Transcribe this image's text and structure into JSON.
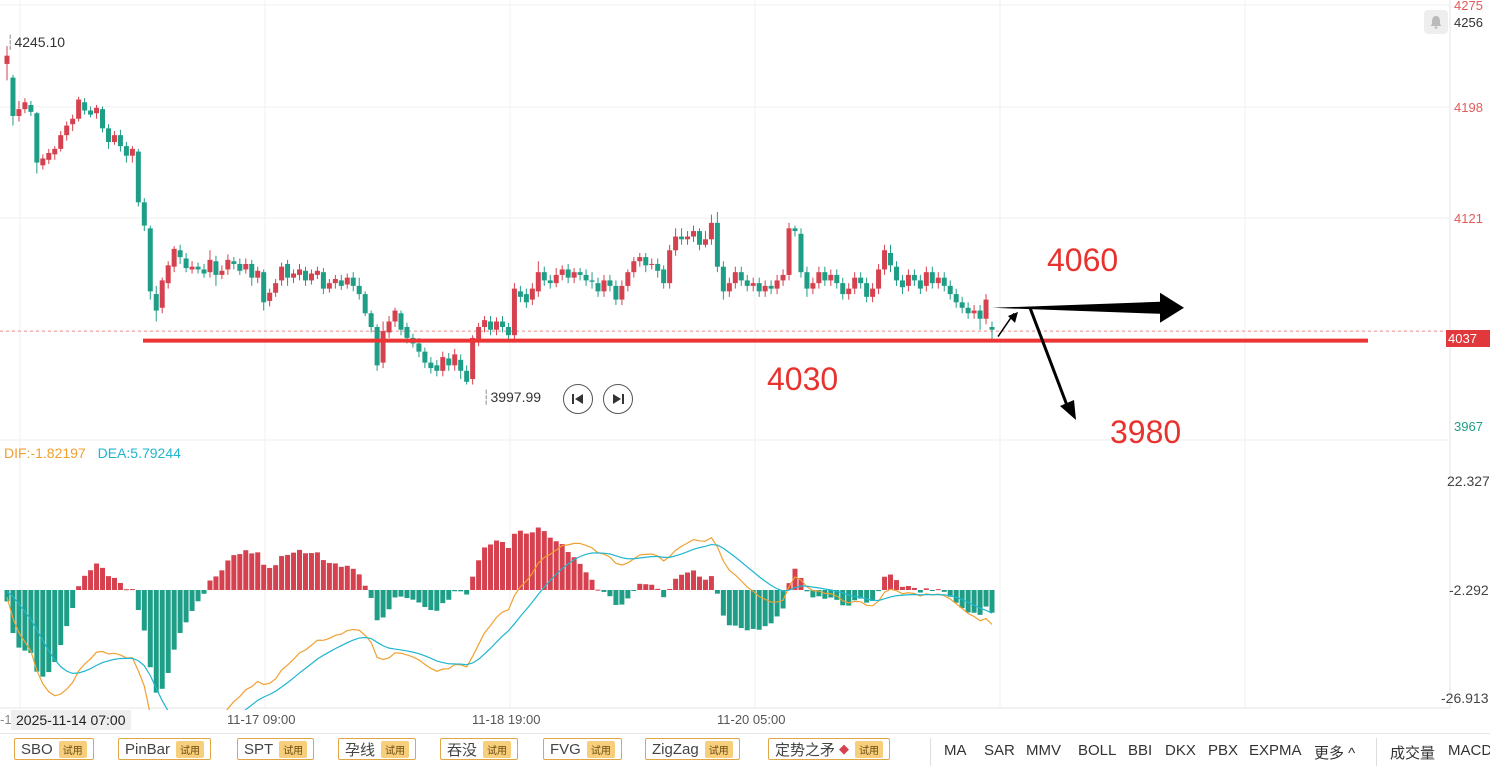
{
  "chart_data": {
    "type": "candlestick",
    "price_axis": {
      "ticks": [
        "4275",
        "4256",
        "4198",
        "4121",
        "4037",
        "3967"
      ],
      "ylim": [
        3967,
        4275
      ]
    },
    "current_price_label": "4037",
    "high_marker": "4245.10",
    "low_marker": "3997.99",
    "x_tick_labels": [
      "2025-11-14 07:00",
      "11-17 09:00",
      "11-18 19:00",
      "11-20 05:00"
    ],
    "x_cut_label": "-1",
    "candles": [
      [
        4232,
        4238,
        4220,
        4245
      ],
      [
        4222,
        4194,
        4187,
        4224
      ],
      [
        4194,
        4199,
        4190,
        4205
      ],
      [
        4199,
        4204,
        4196,
        4207
      ],
      [
        4202,
        4197,
        4194,
        4205
      ],
      [
        4196,
        4160,
        4152,
        4197
      ],
      [
        4158,
        4163,
        4155,
        4166
      ],
      [
        4162,
        4167,
        4159,
        4170
      ],
      [
        4166,
        4170,
        4162,
        4172
      ],
      [
        4170,
        4180,
        4168,
        4183
      ],
      [
        4180,
        4187,
        4176,
        4190
      ],
      [
        4188,
        4192,
        4183,
        4195
      ],
      [
        4192,
        4206,
        4190,
        4208
      ],
      [
        4204,
        4198,
        4195,
        4207
      ],
      [
        4198,
        4195,
        4193,
        4201
      ],
      [
        4196,
        4200,
        4192,
        4202
      ],
      [
        4199,
        4185,
        4182,
        4201
      ],
      [
        4185,
        4175,
        4170,
        4188
      ],
      [
        4175,
        4180,
        4173,
        4183
      ],
      [
        4180,
        4172,
        4168,
        4184
      ],
      [
        4172,
        4165,
        4160,
        4175
      ],
      [
        4165,
        4170,
        4160,
        4172
      ],
      [
        4168,
        4131,
        4128,
        4170
      ],
      [
        4131,
        4114,
        4110,
        4134
      ],
      [
        4112,
        4066,
        4060,
        4114
      ],
      [
        4064,
        4052,
        4044,
        4070
      ],
      [
        4054,
        4074,
        4050,
        4076
      ],
      [
        4072,
        4085,
        4068,
        4088
      ],
      [
        4084,
        4097,
        4080,
        4099
      ],
      [
        4096,
        4091,
        4086,
        4100
      ],
      [
        4090,
        4083,
        4080,
        4094
      ],
      [
        4082,
        4084,
        4079,
        4088
      ],
      [
        4084,
        4082,
        4079,
        4087
      ],
      [
        4082,
        4079,
        4076,
        4086
      ],
      [
        4080,
        4089,
        4076,
        4096
      ],
      [
        4088,
        4078,
        4070,
        4092
      ],
      [
        4078,
        4081,
        4075,
        4085
      ],
      [
        4082,
        4089,
        4078,
        4093
      ],
      [
        4088,
        4086,
        4082,
        4091
      ],
      [
        4086,
        4081,
        4078,
        4090
      ],
      [
        4082,
        4086,
        4079,
        4090
      ],
      [
        4086,
        4076,
        4070,
        4089
      ],
      [
        4076,
        4081,
        4072,
        4084
      ],
      [
        4080,
        4058,
        4052,
        4082
      ],
      [
        4059,
        4065,
        4055,
        4068
      ],
      [
        4065,
        4072,
        4062,
        4075
      ],
      [
        4074,
        4084,
        4070,
        4087
      ],
      [
        4086,
        4076,
        4070,
        4089
      ],
      [
        4076,
        4079,
        4072,
        4082
      ],
      [
        4078,
        4082,
        4074,
        4086
      ],
      [
        4081,
        4074,
        4070,
        4084
      ],
      [
        4074,
        4079,
        4071,
        4082
      ],
      [
        4078,
        4081,
        4075,
        4084
      ],
      [
        4080,
        4068,
        4064,
        4083
      ],
      [
        4068,
        4072,
        4065,
        4075
      ],
      [
        4072,
        4075,
        4068,
        4078
      ],
      [
        4074,
        4070,
        4067,
        4078
      ],
      [
        4071,
        4076,
        4068,
        4079
      ],
      [
        4076,
        4070,
        4066,
        4080
      ],
      [
        4070,
        4064,
        4060,
        4076
      ],
      [
        4064,
        4050,
        4048,
        4066
      ],
      [
        4050,
        4040,
        4036,
        4052
      ],
      [
        4040,
        4012,
        4008,
        4042
      ],
      [
        4014,
        4037,
        4010,
        4044
      ],
      [
        4036,
        4044,
        4032,
        4048
      ],
      [
        4044,
        4052,
        4040,
        4054
      ],
      [
        4050,
        4038,
        4034,
        4052
      ],
      [
        4040,
        4032,
        4028,
        4043
      ],
      [
        4032,
        4028,
        4025,
        4035
      ],
      [
        4028,
        4022,
        4018,
        4032
      ],
      [
        4022,
        4014,
        4010,
        4025
      ],
      [
        4014,
        4010,
        4006,
        4018
      ],
      [
        4012,
        4008,
        4004,
        4016
      ],
      [
        4008,
        4018,
        4004,
        4022
      ],
      [
        4017,
        4012,
        4008,
        4021
      ],
      [
        4012,
        4020,
        4008,
        4024
      ],
      [
        4016,
        4008,
        4002,
        4020
      ],
      [
        4008,
        4000,
        3998,
        4012
      ],
      [
        4002,
        4032,
        3998,
        4034
      ],
      [
        4030,
        4040,
        4026,
        4043
      ],
      [
        4040,
        4045,
        4036,
        4048
      ],
      [
        4044,
        4038,
        4034,
        4048
      ],
      [
        4038,
        4044,
        4034,
        4047
      ],
      [
        4044,
        4040,
        4036,
        4048
      ],
      [
        4040,
        4034,
        4030,
        4043
      ],
      [
        4034,
        4068,
        4030,
        4072
      ],
      [
        4066,
        4062,
        4058,
        4070
      ],
      [
        4064,
        4058,
        4054,
        4068
      ],
      [
        4060,
        4068,
        4056,
        4072
      ],
      [
        4066,
        4080,
        4062,
        4088
      ],
      [
        4080,
        4074,
        4070,
        4084
      ],
      [
        4074,
        4072,
        4068,
        4078
      ],
      [
        4072,
        4078,
        4069,
        4083
      ],
      [
        4078,
        4082,
        4074,
        4085
      ],
      [
        4082,
        4076,
        4072,
        4086
      ],
      [
        4076,
        4080,
        4072,
        4083
      ],
      [
        4080,
        4078,
        4074,
        4083
      ],
      [
        4078,
        4074,
        4070,
        4082
      ],
      [
        4074,
        4073,
        4068,
        4080
      ],
      [
        4072,
        4066,
        4062,
        4076
      ],
      [
        4066,
        4074,
        4062,
        4078
      ],
      [
        4074,
        4070,
        4066,
        4078
      ],
      [
        4070,
        4060,
        4056,
        4074
      ],
      [
        4060,
        4070,
        4056,
        4074
      ],
      [
        4070,
        4080,
        4066,
        4082
      ],
      [
        4080,
        4088,
        4076,
        4091
      ],
      [
        4088,
        4091,
        4084,
        4094
      ],
      [
        4091,
        4085,
        4080,
        4094
      ],
      [
        4086,
        4086,
        4082,
        4090
      ],
      [
        4086,
        4081,
        4076,
        4090
      ],
      [
        4082,
        4072,
        4068,
        4085
      ],
      [
        4072,
        4096,
        4068,
        4100
      ],
      [
        4096,
        4106,
        4092,
        4112
      ],
      [
        4106,
        4104,
        4100,
        4112
      ],
      [
        4104,
        4106,
        4100,
        4110
      ],
      [
        4106,
        4110,
        4102,
        4114
      ],
      [
        4110,
        4100,
        4096,
        4112
      ],
      [
        4100,
        4104,
        4098,
        4110
      ],
      [
        4104,
        4116,
        4100,
        4122
      ],
      [
        4116,
        4084,
        4080,
        4124
      ],
      [
        4084,
        4066,
        4060,
        4088
      ],
      [
        4066,
        4072,
        4062,
        4076
      ],
      [
        4072,
        4080,
        4068,
        4084
      ],
      [
        4080,
        4074,
        4070,
        4084
      ],
      [
        4074,
        4070,
        4066,
        4078
      ],
      [
        4070,
        4072,
        4066,
        4076
      ],
      [
        4072,
        4066,
        4062,
        4076
      ],
      [
        4066,
        4070,
        4062,
        4074
      ],
      [
        4070,
        4068,
        4064,
        4074
      ],
      [
        4068,
        4074,
        4064,
        4078
      ],
      [
        4074,
        4078,
        4070,
        4082
      ],
      [
        4078,
        4112,
        4074,
        4116
      ],
      [
        4112,
        4110,
        4106,
        4114
      ],
      [
        4108,
        4080,
        4076,
        4112
      ],
      [
        4080,
        4068,
        4062,
        4084
      ],
      [
        4068,
        4072,
        4064,
        4076
      ],
      [
        4072,
        4080,
        4068,
        4084
      ],
      [
        4080,
        4074,
        4070,
        4084
      ],
      [
        4074,
        4078,
        4070,
        4082
      ],
      [
        4078,
        4072,
        4068,
        4082
      ],
      [
        4072,
        4064,
        4060,
        4076
      ],
      [
        4064,
        4068,
        4060,
        4072
      ],
      [
        4068,
        4076,
        4064,
        4080
      ],
      [
        4076,
        4072,
        4068,
        4080
      ],
      [
        4072,
        4062,
        4058,
        4076
      ],
      [
        4062,
        4068,
        4058,
        4072
      ],
      [
        4068,
        4082,
        4064,
        4086
      ],
      [
        4082,
        4096,
        4078,
        4100
      ],
      [
        4094,
        4085,
        4080,
        4100
      ],
      [
        4084,
        4074,
        4070,
        4088
      ],
      [
        4074,
        4069,
        4064,
        4078
      ],
      [
        4070,
        4078,
        4066,
        4082
      ],
      [
        4078,
        4074,
        4070,
        4082
      ],
      [
        4074,
        4068,
        4064,
        4078
      ],
      [
        4070,
        4080,
        4066,
        4084
      ],
      [
        4080,
        4072,
        4068,
        4084
      ],
      [
        4072,
        4076,
        4068,
        4080
      ],
      [
        4076,
        4070,
        4066,
        4080
      ],
      [
        4070,
        4064,
        4060,
        4074
      ],
      [
        4064,
        4058,
        4054,
        4068
      ],
      [
        4058,
        4054,
        4050,
        4062
      ],
      [
        4054,
        4050,
        4046,
        4058
      ],
      [
        4050,
        4052,
        4046,
        4056
      ],
      [
        4052,
        4046,
        4038,
        4056
      ],
      [
        4046,
        4060,
        4042,
        4064
      ],
      [
        4040,
        4038,
        4030,
        4044
      ]
    ],
    "macd": {
      "legend": {
        "dif": "DIF:-1.82197",
        "dea": "DEA:5.79244"
      },
      "axis_ticks": [
        "22.327",
        "-2.292",
        "-26.913"
      ],
      "ylim": [
        -26.913,
        22.327
      ]
    },
    "annotations": [
      {
        "text": "4060"
      },
      {
        "text": "4030"
      },
      {
        "text": "3980"
      }
    ],
    "horizontal_line_level": 4030
  },
  "nav": {
    "prev_label": "previous",
    "next_label": "next"
  },
  "toolbar": {
    "buttons": [
      {
        "label": "SBO",
        "tag": "试用"
      },
      {
        "label": "PinBar",
        "tag": "试用"
      },
      {
        "label": "SPT",
        "tag": "试用"
      },
      {
        "label": "孕线",
        "tag": "试用"
      },
      {
        "label": "吞没",
        "tag": "试用"
      },
      {
        "label": "FVG",
        "tag": "试用"
      },
      {
        "label": "ZigZag",
        "tag": "试用"
      },
      {
        "label": "定势之矛",
        "tag": "试用"
      }
    ],
    "indicators": [
      "MA",
      "SAR",
      "MMV",
      "BOLL",
      "BBI",
      "DKX",
      "PBX",
      "EXPMA",
      "更多 ^"
    ],
    "right_items": [
      "成交量",
      "MACD"
    ]
  },
  "colors": {
    "up": "#d6414f",
    "down": "#1e9e87",
    "line": "#ec3434",
    "dif": "#f0a030",
    "dea": "#1fb6cf"
  }
}
